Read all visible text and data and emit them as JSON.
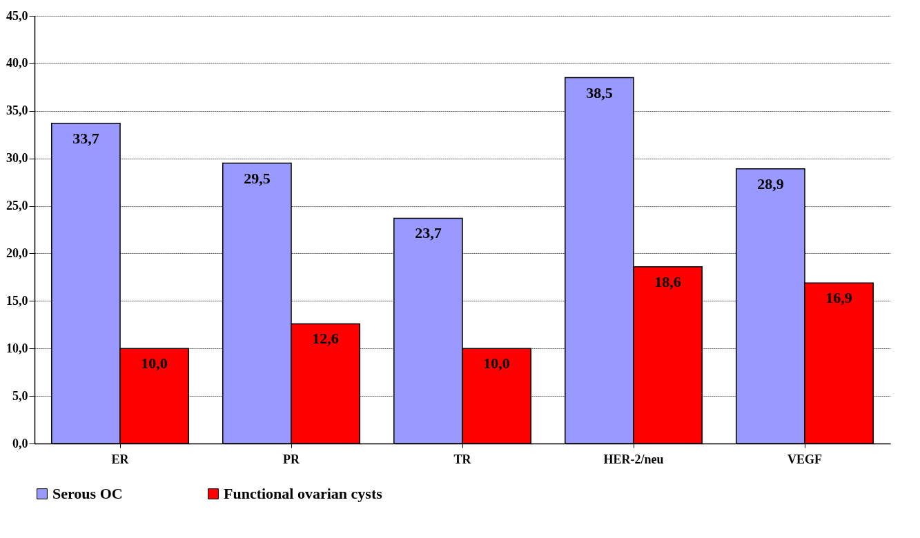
{
  "chart_data": {
    "type": "bar",
    "categories": [
      "ER",
      "PR",
      "TR",
      "HER-2/neu",
      "VEGF"
    ],
    "series": [
      {
        "name": "Serous OC",
        "color": "#9999ff",
        "values": [
          33.7,
          29.5,
          23.7,
          38.5,
          28.9
        ],
        "value_labels": [
          "33,7",
          "29,5",
          "23,7",
          "38,5",
          "28,9"
        ]
      },
      {
        "name": "Functional ovarian cysts",
        "color": "#ff0000",
        "values": [
          10.0,
          12.6,
          10.0,
          18.6,
          16.9
        ],
        "value_labels": [
          "10,0",
          "12,6",
          "10,0",
          "18,6",
          "16,9"
        ]
      }
    ],
    "ylim": [
      0,
      45
    ],
    "yticks": [
      {
        "value": 0,
        "label": "0,0"
      },
      {
        "value": 5,
        "label": "5,0"
      },
      {
        "value": 10,
        "label": "10,0"
      },
      {
        "value": 15,
        "label": "15,0"
      },
      {
        "value": 20,
        "label": "20,0"
      },
      {
        "value": 25,
        "label": "25,0"
      },
      {
        "value": 30,
        "label": "30,0"
      },
      {
        "value": 35,
        "label": "35,0"
      },
      {
        "value": 40,
        "label": "40,0"
      },
      {
        "value": 45,
        "label": "45,0"
      }
    ],
    "grid": "y",
    "legend": "bottom"
  }
}
